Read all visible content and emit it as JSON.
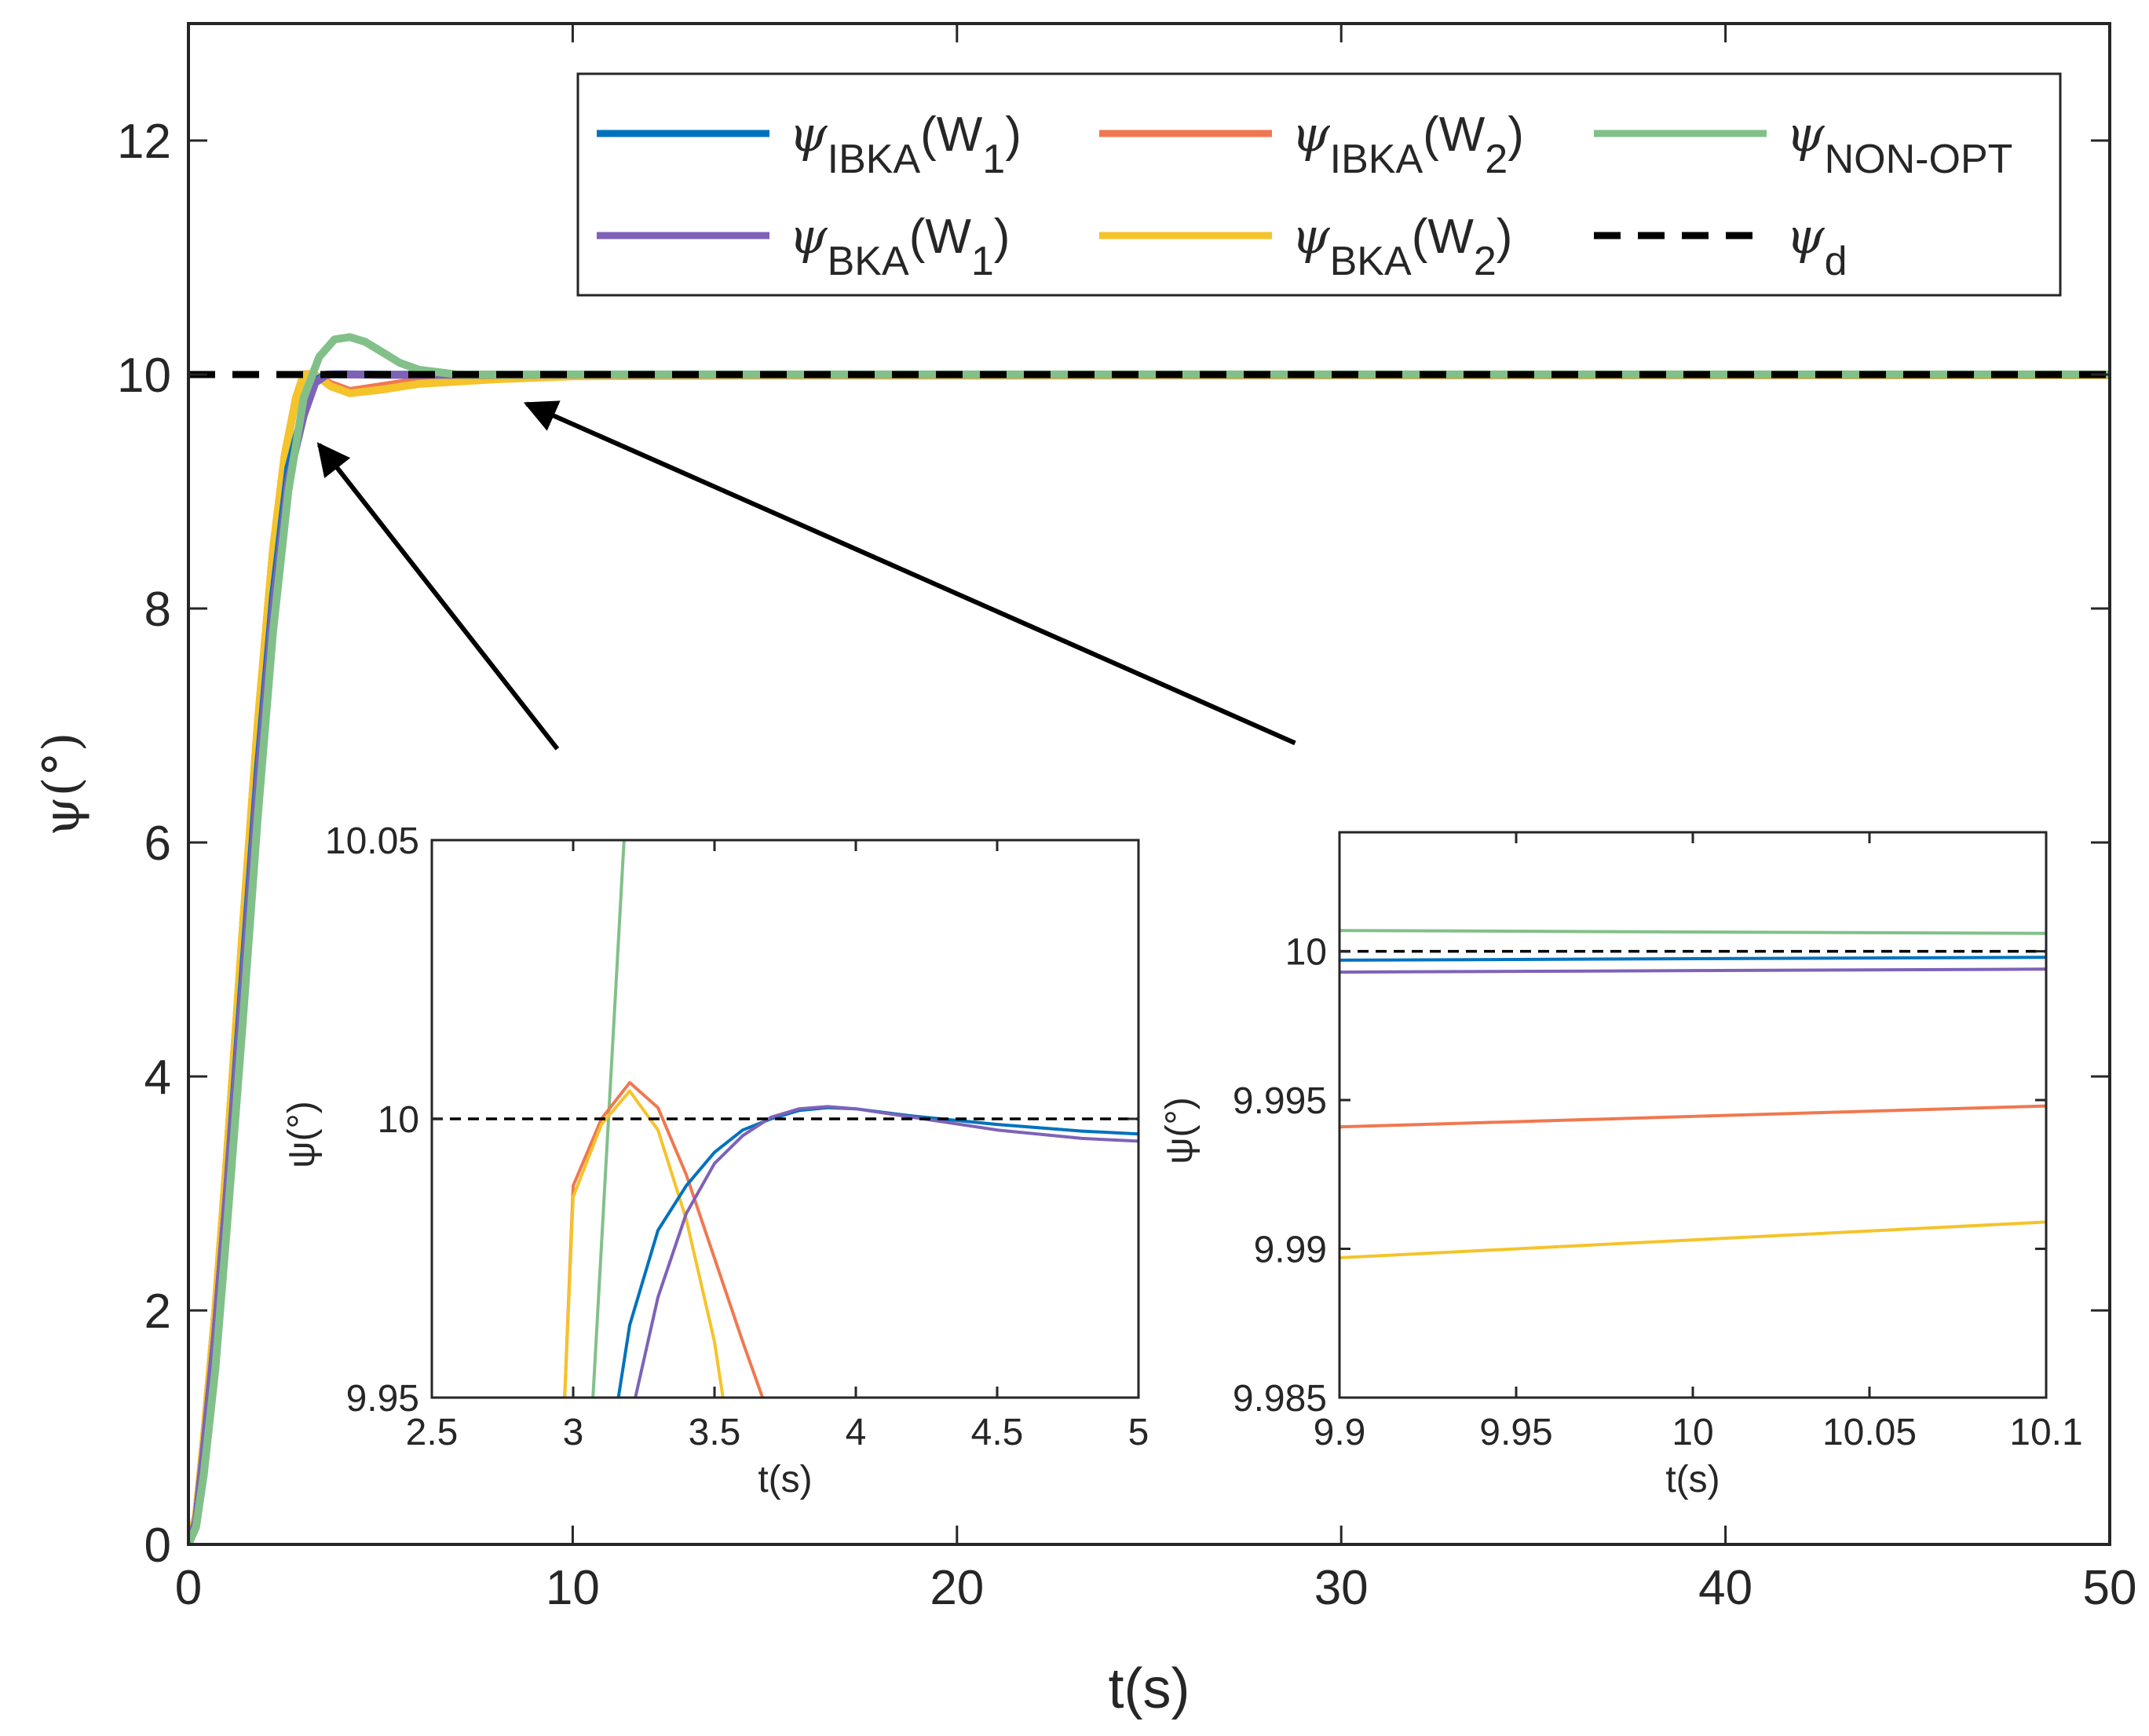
{
  "colors": {
    "ibka_w1": "#0072BD",
    "ibka_w2": "#F07850",
    "non_opt": "#82C08A",
    "bka_w1": "#7E62B8",
    "bka_w2": "#F5C32A",
    "desired": "#000000",
    "arrow": "#000000"
  },
  "chart_data": [
    {
      "type": "line",
      "panel": "main",
      "xlabel": "t(s)",
      "ylabel": "ψ(°)",
      "xlim": [
        0,
        50
      ],
      "ylim": [
        0,
        13
      ],
      "xticks": [
        0,
        10,
        20,
        30,
        40,
        50
      ],
      "yticks": [
        0,
        2,
        4,
        6,
        8,
        10,
        12
      ],
      "legend_position": "top-right",
      "legend": [
        {
          "key": "ibka_w1",
          "sym": "ψ",
          "sub": "IBKA",
          "suffix": "(W",
          "sub2": "1",
          "end": ")"
        },
        {
          "key": "ibka_w2",
          "sym": "ψ",
          "sub": "IBKA",
          "suffix": "(W",
          "sub2": "2",
          "end": ")"
        },
        {
          "key": "non_opt",
          "sym": "ψ",
          "sub": "NON-OPT",
          "suffix": "",
          "sub2": "",
          "end": ""
        },
        {
          "key": "bka_w1",
          "sym": "ψ",
          "sub": "BKA",
          "suffix": "(W",
          "sub2": "1",
          "end": ")"
        },
        {
          "key": "bka_w2",
          "sym": "ψ",
          "sub": "BKA",
          "suffix": "(W",
          "sub2": "2",
          "end": ")"
        },
        {
          "key": "desired",
          "sym": "ψ",
          "sub": "d",
          "suffix": "",
          "sub2": "",
          "end": ""
        }
      ],
      "series": [
        {
          "key": "ibka_w2",
          "x": [
            0,
            0.2,
            0.4,
            0.7,
            1.0,
            1.4,
            1.8,
            2.2,
            2.5,
            2.8,
            3.0,
            3.2,
            3.4,
            3.7,
            4.2,
            5.0,
            6.0,
            8.0,
            10,
            15,
            20,
            30,
            40,
            50
          ],
          "y": [
            0,
            0.25,
            0.9,
            2.0,
            3.3,
            5.2,
            7.0,
            8.5,
            9.3,
            9.8,
            10.0,
            10.005,
            9.98,
            9.92,
            9.86,
            9.9,
            9.95,
            9.98,
            9.99,
            9.994,
            9.995,
            9.996,
            9.997,
            9.998
          ]
        },
        {
          "key": "bka_w2",
          "x": [
            0,
            0.2,
            0.4,
            0.7,
            1.0,
            1.4,
            1.8,
            2.2,
            2.5,
            2.8,
            3.0,
            3.2,
            3.4,
            3.7,
            4.2,
            5.0,
            6.0,
            8.0,
            10,
            15,
            20,
            30,
            40,
            50
          ],
          "y": [
            0,
            0.25,
            0.9,
            2.0,
            3.3,
            5.2,
            7.0,
            8.5,
            9.3,
            9.8,
            9.995,
            10.003,
            9.975,
            9.9,
            9.84,
            9.87,
            9.92,
            9.96,
            9.985,
            9.99,
            9.99,
            9.991,
            9.992,
            9.993
          ]
        },
        {
          "key": "ibka_w1",
          "x": [
            0,
            0.2,
            0.4,
            0.7,
            1.0,
            1.4,
            1.8,
            2.2,
            2.6,
            3.0,
            3.3,
            3.6,
            3.9,
            4.5,
            5,
            10,
            20,
            30,
            40,
            50
          ],
          "y": [
            0,
            0.2,
            0.8,
            1.8,
            3.0,
            4.8,
            6.6,
            8.1,
            9.2,
            9.7,
            9.95,
            10.0,
            10.002,
            10.0,
            9.998,
            9.9998,
            9.9998,
            9.9998,
            9.9998,
            9.9998
          ]
        },
        {
          "key": "bka_w1",
          "x": [
            0,
            0.2,
            0.4,
            0.7,
            1.0,
            1.4,
            1.8,
            2.2,
            2.6,
            3.0,
            3.3,
            3.6,
            3.9,
            4.5,
            5,
            10,
            20,
            30,
            40,
            50
          ],
          "y": [
            0,
            0.2,
            0.8,
            1.8,
            3.0,
            4.7,
            6.5,
            8.0,
            9.1,
            9.65,
            9.93,
            10.0,
            10.002,
            9.999,
            9.997,
            9.9994,
            9.9994,
            9.9994,
            9.9994,
            9.9994
          ]
        },
        {
          "key": "non_opt",
          "x": [
            0,
            0.2,
            0.4,
            0.7,
            1.0,
            1.4,
            1.8,
            2.2,
            2.6,
            3.0,
            3.4,
            3.8,
            4.2,
            4.6,
            5.0,
            5.5,
            6.0,
            7.0,
            8.0,
            10,
            20,
            30,
            40,
            50
          ],
          "y": [
            0,
            0.15,
            0.6,
            1.5,
            2.7,
            4.4,
            6.2,
            7.8,
            9.0,
            9.8,
            10.15,
            10.3,
            10.32,
            10.28,
            10.2,
            10.1,
            10.04,
            10.0,
            10.0,
            10.0007,
            10.0007,
            10.0007,
            10.0007,
            10.0007
          ]
        },
        {
          "key": "desired",
          "x": [
            0,
            50
          ],
          "y": [
            10,
            10
          ],
          "dashed": true
        }
      ],
      "annotations": [
        {
          "type": "arrow",
          "from": [
            9.6,
            6.8
          ],
          "to": [
            3.4,
            9.4
          ]
        },
        {
          "type": "arrow",
          "from": [
            28.8,
            6.85
          ],
          "to": [
            8.8,
            9.75
          ]
        }
      ]
    },
    {
      "type": "line",
      "panel": "inset-left",
      "xlabel": "t(s)",
      "ylabel": "ψ(°)",
      "xlim": [
        2.5,
        5
      ],
      "ylim": [
        9.95,
        10.05
      ],
      "xticks": [
        "2.5",
        "3",
        "3.5",
        "4",
        "4.5",
        "5"
      ],
      "yticks": [
        "9.95",
        "10",
        "10.05"
      ],
      "series": [
        {
          "key": "non_opt",
          "x": [
            3.07,
            3.18
          ],
          "y": [
            9.95,
            10.05
          ]
        },
        {
          "key": "ibka_w2",
          "x": [
            2.97,
            3.0,
            3.1,
            3.2,
            3.3,
            3.4,
            3.5,
            3.6,
            3.67
          ],
          "y": [
            9.95,
            9.988,
            10.0,
            10.0065,
            10.002,
            9.99,
            9.975,
            9.96,
            9.95
          ]
        },
        {
          "key": "bka_w2",
          "x": [
            2.97,
            3.0,
            3.1,
            3.2,
            3.3,
            3.4,
            3.5,
            3.53
          ],
          "y": [
            9.95,
            9.986,
            9.999,
            10.005,
            9.998,
            9.982,
            9.96,
            9.95
          ]
        },
        {
          "key": "ibka_w1",
          "x": [
            3.16,
            3.2,
            3.3,
            3.4,
            3.5,
            3.6,
            3.7,
            3.8,
            3.9,
            4.0,
            4.2,
            4.5,
            4.8,
            5.0
          ],
          "y": [
            9.95,
            9.963,
            9.98,
            9.988,
            9.994,
            9.998,
            10.0,
            10.0015,
            10.002,
            10.0018,
            10.0005,
            9.999,
            9.9978,
            9.9973
          ]
        },
        {
          "key": "bka_w1",
          "x": [
            3.22,
            3.3,
            3.4,
            3.5,
            3.6,
            3.7,
            3.8,
            3.9,
            4.0,
            4.2,
            4.5,
            4.8,
            5.0
          ],
          "y": [
            9.95,
            9.968,
            9.983,
            9.992,
            9.997,
            10.0003,
            10.0018,
            10.0022,
            10.0018,
            10.0003,
            9.998,
            9.9965,
            9.996
          ]
        },
        {
          "key": "desired",
          "x": [
            2.5,
            5
          ],
          "y": [
            10,
            10
          ],
          "dashed": true
        }
      ]
    },
    {
      "type": "line",
      "panel": "inset-right",
      "xlabel": "t(s)",
      "ylabel": "ψ(°)",
      "xlim": [
        9.9,
        10.1
      ],
      "ylim": [
        9.985,
        10.004
      ],
      "xticks": [
        "9.9",
        "9.95",
        "10",
        "10.05",
        "10.1"
      ],
      "yticks": [
        "9.985",
        "9.99",
        "9.995",
        "10"
      ],
      "series": [
        {
          "key": "non_opt",
          "x": [
            9.9,
            10.1
          ],
          "y": [
            10.0007,
            10.0006
          ]
        },
        {
          "key": "desired",
          "x": [
            9.9,
            10.1
          ],
          "y": [
            10.0,
            10.0
          ],
          "dashed": true
        },
        {
          "key": "ibka_w1",
          "x": [
            9.9,
            10.1
          ],
          "y": [
            9.9997,
            9.9998
          ]
        },
        {
          "key": "bka_w1",
          "x": [
            9.9,
            10.1
          ],
          "y": [
            9.9993,
            9.9994
          ]
        },
        {
          "key": "ibka_w2",
          "x": [
            9.9,
            10.1
          ],
          "y": [
            9.9941,
            9.9948
          ]
        },
        {
          "key": "bka_w2",
          "x": [
            9.9,
            10.1
          ],
          "y": [
            9.9897,
            9.9909
          ]
        }
      ]
    }
  ]
}
